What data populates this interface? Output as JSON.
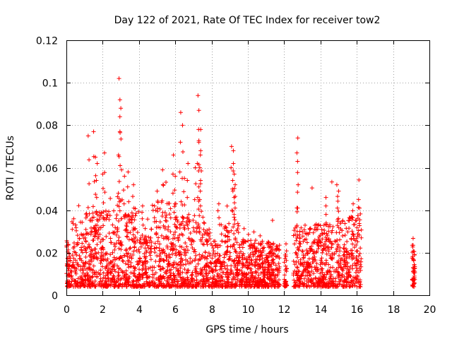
{
  "chart_data": {
    "type": "scatter",
    "title": "Day 122 of 2021, Rate Of TEC Index for receiver tow2",
    "xlabel": "GPS time / hours",
    "ylabel": "ROTI / TECUs",
    "xlim": [
      0,
      20
    ],
    "ylim": [
      0,
      0.12
    ],
    "xticks": [
      "0",
      "2",
      "4",
      "6",
      "8",
      "10",
      "12",
      "14",
      "16",
      "18",
      "20"
    ],
    "yticks": [
      "0",
      "0.02",
      "0.04",
      "0.06",
      "0.08",
      "0.1",
      "0.12"
    ],
    "grid": true,
    "marker": "+",
    "color": "#ff0000",
    "series": [
      {
        "name": "ROTI",
        "segments": [
          [
            0.0,
            11.75
          ],
          [
            12.0,
            12.15
          ],
          [
            12.5,
            16.25
          ],
          [
            19.05,
            19.2
          ]
        ],
        "notable_points": [
          [
            1.2,
            0.075
          ],
          [
            1.5,
            0.077
          ],
          [
            1.6,
            0.065
          ],
          [
            1.7,
            0.062
          ],
          [
            2.0,
            0.057
          ],
          [
            2.1,
            0.067
          ],
          [
            2.9,
            0.102
          ],
          [
            2.95,
            0.092
          ],
          [
            3.0,
            0.088
          ],
          [
            2.95,
            0.077
          ],
          [
            3.2,
            0.056
          ],
          [
            3.4,
            0.058
          ],
          [
            3.7,
            0.052
          ],
          [
            4.2,
            0.042
          ],
          [
            5.0,
            0.049
          ],
          [
            5.3,
            0.059
          ],
          [
            5.9,
            0.066
          ],
          [
            6.0,
            0.056
          ],
          [
            6.3,
            0.086
          ],
          [
            6.4,
            0.08
          ],
          [
            6.5,
            0.055
          ],
          [
            6.7,
            0.062
          ],
          [
            7.1,
            0.06
          ],
          [
            7.25,
            0.094
          ],
          [
            7.3,
            0.087
          ],
          [
            7.4,
            0.078
          ],
          [
            7.3,
            0.072
          ],
          [
            7.4,
            0.068
          ],
          [
            7.35,
            0.06
          ],
          [
            8.4,
            0.043
          ],
          [
            9.1,
            0.07
          ],
          [
            9.2,
            0.068
          ],
          [
            9.2,
            0.062
          ],
          [
            9.25,
            0.057
          ],
          [
            9.3,
            0.052
          ],
          [
            12.75,
            0.074
          ],
          [
            12.7,
            0.067
          ],
          [
            14.3,
            0.046
          ],
          [
            14.9,
            0.052
          ],
          [
            15.0,
            0.049
          ],
          [
            15.8,
            0.043
          ],
          [
            16.1,
            0.045
          ],
          [
            16.15,
            0.041
          ],
          [
            19.1,
            0.017
          ],
          [
            19.15,
            0.004
          ]
        ]
      }
    ]
  }
}
